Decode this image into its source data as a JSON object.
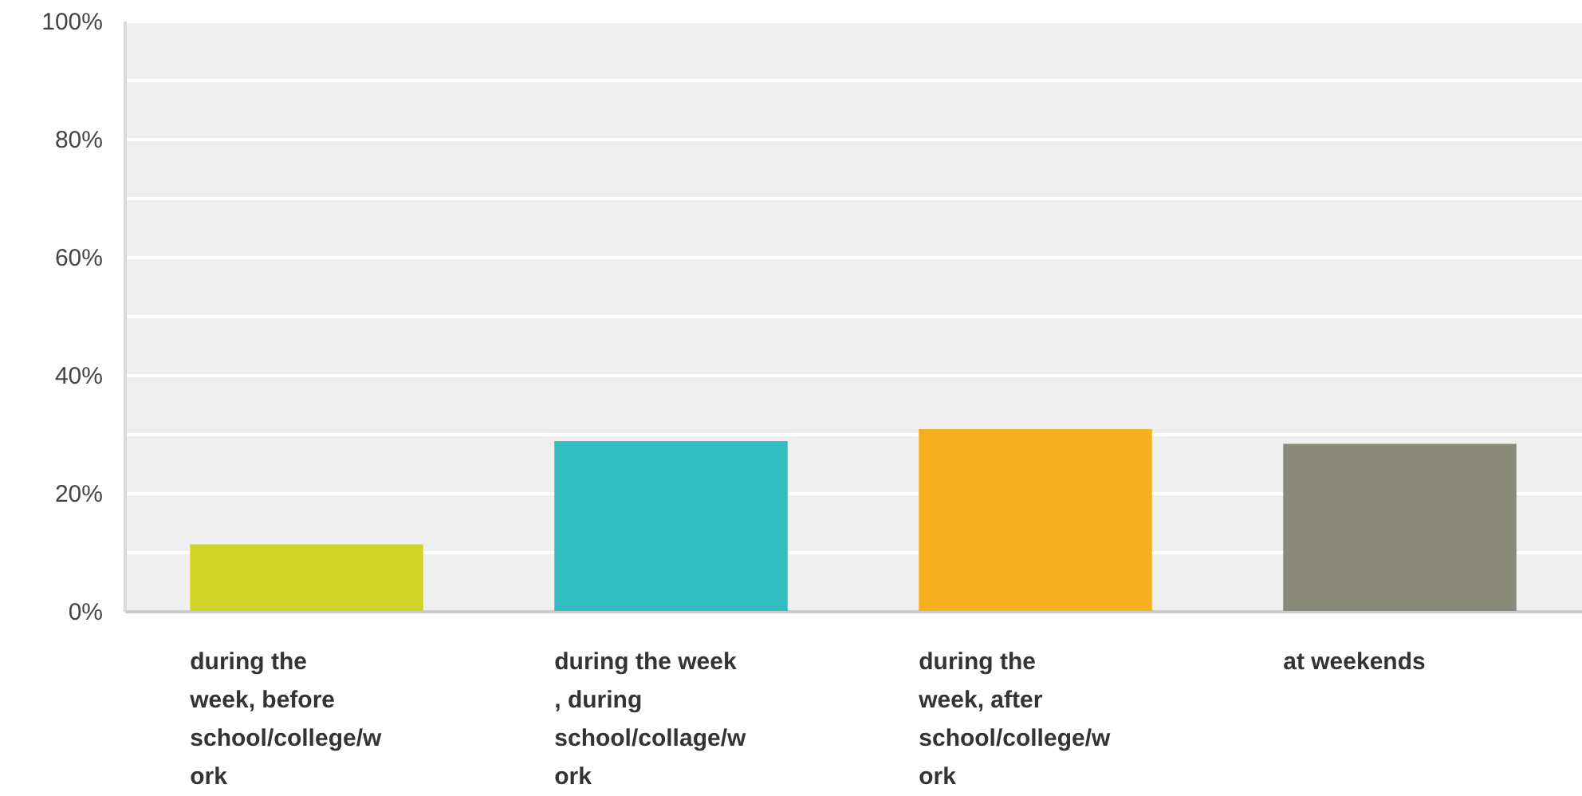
{
  "chart_data": {
    "type": "bar",
    "categories": [
      "during the week, before school/college/work",
      "during the week , during school/collage/work",
      "during the week, after school/college/work",
      "at weekends"
    ],
    "values": [
      11.3,
      28.8,
      30.8,
      28.3
    ],
    "colors": [
      "#d0d428",
      "#34bdc0",
      "#f6b01f",
      "#898a7a"
    ],
    "ylim": [
      0,
      100
    ],
    "yticks": [
      {
        "value": 0,
        "label": "0%"
      },
      {
        "value": 10,
        "label": null
      },
      {
        "value": 20,
        "label": "20%"
      },
      {
        "value": 30,
        "label": null
      },
      {
        "value": 40,
        "label": "40%"
      },
      {
        "value": 50,
        "label": null
      },
      {
        "value": 60,
        "label": "60%"
      },
      {
        "value": 70,
        "label": null
      },
      {
        "value": 80,
        "label": "80%"
      },
      {
        "value": 90,
        "label": null
      },
      {
        "value": 100,
        "label": "100%"
      }
    ],
    "grid": "y"
  }
}
